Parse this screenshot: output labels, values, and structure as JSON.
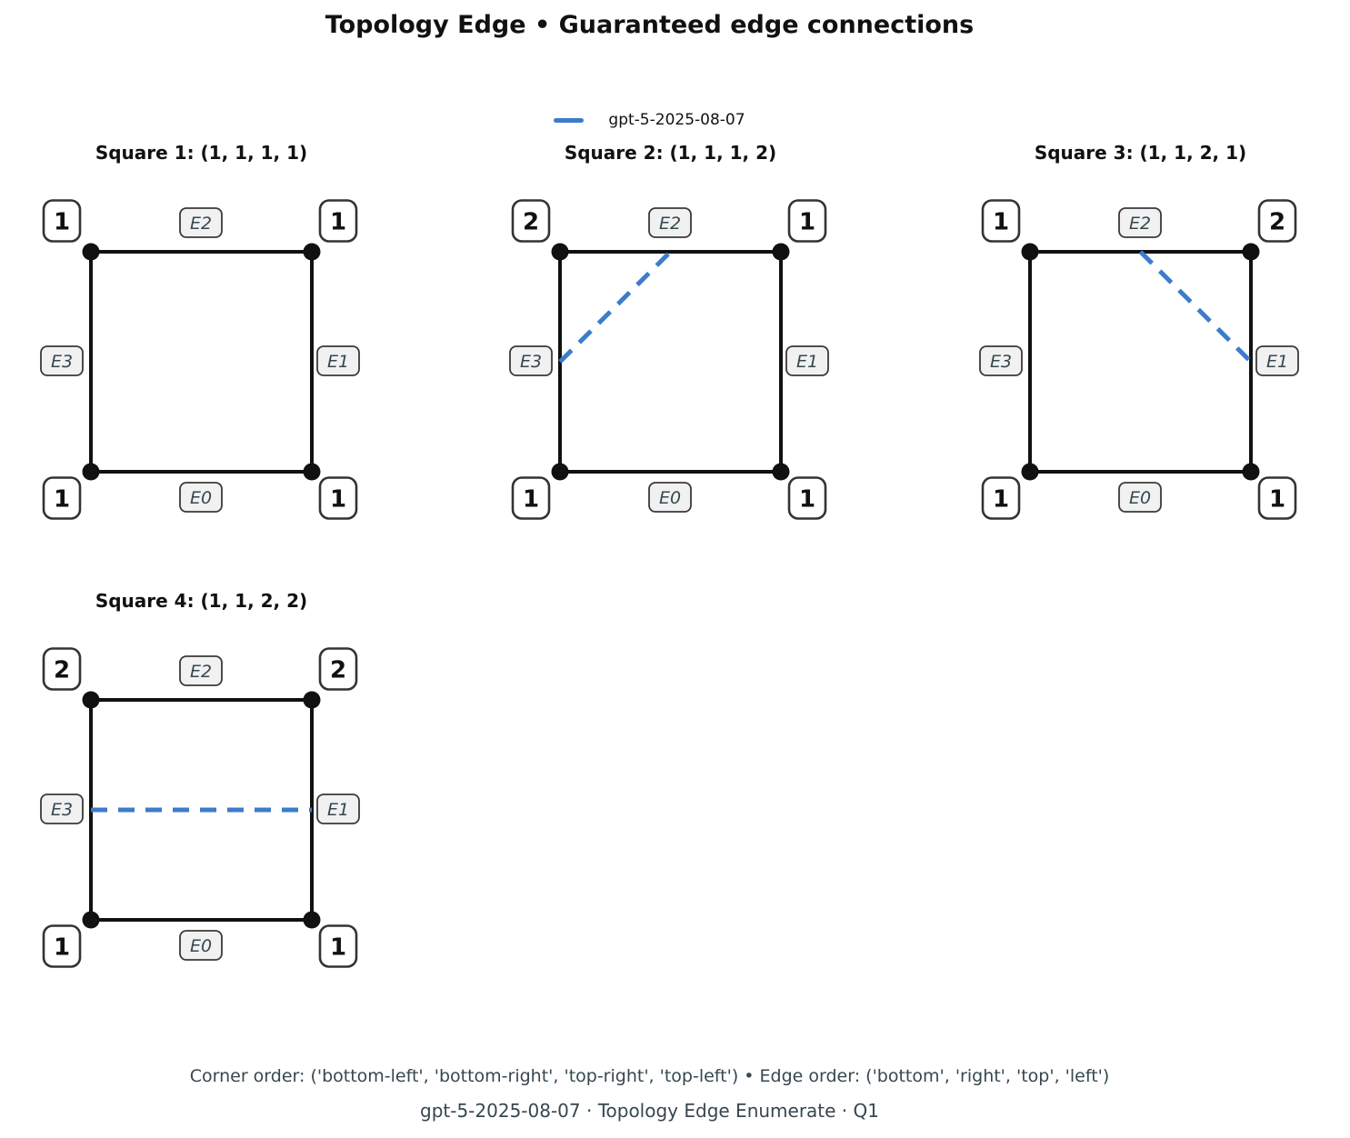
{
  "title": "Topology Edge • Guaranteed edge connections",
  "legend": {
    "label": "gpt-5-2025-08-07",
    "color": "#3d7cc9"
  },
  "squares": [
    {
      "title": "Square 1: (1, 1, 1, 1)",
      "corners": {
        "top_left": "1",
        "top_right": "1",
        "bottom_left": "1",
        "bottom_right": "1"
      },
      "edge_labels": {
        "bottom": "E0",
        "right": "E1",
        "top": "E2",
        "left": "E3"
      },
      "connection": null
    },
    {
      "title": "Square 2: (1, 1, 1, 2)",
      "corners": {
        "top_left": "2",
        "top_right": "1",
        "bottom_left": "1",
        "bottom_right": "1"
      },
      "edge_labels": {
        "bottom": "E0",
        "right": "E1",
        "top": "E2",
        "left": "E3"
      },
      "connection": {
        "from": "left",
        "to": "top"
      }
    },
    {
      "title": "Square 3: (1, 1, 2, 1)",
      "corners": {
        "top_left": "1",
        "top_right": "2",
        "bottom_left": "1",
        "bottom_right": "1"
      },
      "edge_labels": {
        "bottom": "E0",
        "right": "E1",
        "top": "E2",
        "left": "E3"
      },
      "connection": {
        "from": "top",
        "to": "right"
      }
    },
    {
      "title": "Square 4: (1, 1, 2, 2)",
      "corners": {
        "top_left": "2",
        "top_right": "2",
        "bottom_left": "1",
        "bottom_right": "1"
      },
      "edge_labels": {
        "bottom": "E0",
        "right": "E1",
        "top": "E2",
        "left": "E3"
      },
      "connection": {
        "from": "left",
        "to": "right"
      }
    }
  ],
  "footer": {
    "line1": "Corner order: ('bottom-left', 'bottom-right', 'top-right', 'top-left') • Edge order: ('bottom', 'right', 'top', 'left')",
    "line2": "gpt-5-2025-08-07 · Topology Edge Enumerate · Q1"
  },
  "colors": {
    "line": "#111111",
    "connection_blue": "#3d7cc9",
    "corner_box_border": "#333333",
    "corner_box_fill": "#ffffff",
    "edge_box_fill": "#f1f1f1",
    "edge_box_border": "#3a3a3a",
    "edge_label_text": "#37474f",
    "footer_text": "#37474f"
  }
}
